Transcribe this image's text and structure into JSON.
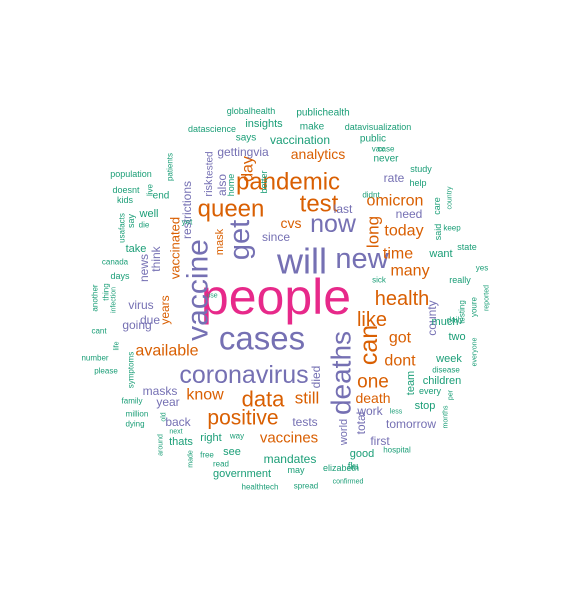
{
  "colors": {
    "teal": "#1b9e77",
    "orange": "#d95f02",
    "purple": "#7570b3",
    "magenta": "#e7298a"
  },
  "words": [
    {
      "text": "people",
      "color": "magenta",
      "weight": 10
    },
    {
      "text": "will",
      "color": "purple",
      "weight": 7
    },
    {
      "text": "cases",
      "color": "purple",
      "weight": 7
    },
    {
      "text": "vaccine",
      "color": "purple",
      "weight": 6
    },
    {
      "text": "coronavirus",
      "color": "purple",
      "weight": 6
    },
    {
      "text": "deaths",
      "color": "purple",
      "weight": 6
    },
    {
      "text": "new",
      "color": "purple",
      "weight": 5
    },
    {
      "text": "now",
      "color": "purple",
      "weight": 5
    },
    {
      "text": "get",
      "color": "purple",
      "weight": 5
    },
    {
      "text": "pandemic",
      "color": "orange",
      "weight": 5
    },
    {
      "text": "queen",
      "color": "orange",
      "weight": 5
    },
    {
      "text": "test",
      "color": "orange",
      "weight": 5
    },
    {
      "text": "data",
      "color": "orange",
      "weight": 5
    },
    {
      "text": "positive",
      "color": "orange",
      "weight": 5
    },
    {
      "text": "can",
      "color": "orange",
      "weight": 5
    },
    {
      "text": "like",
      "color": "orange",
      "weight": 4
    },
    {
      "text": "health",
      "color": "orange",
      "weight": 4
    },
    {
      "text": "one",
      "color": "orange",
      "weight": 4
    },
    {
      "text": "day",
      "color": "orange",
      "weight": 3
    },
    {
      "text": "long",
      "color": "orange",
      "weight": 3
    },
    {
      "text": "omicron",
      "color": "orange",
      "weight": 3
    },
    {
      "text": "time",
      "color": "orange",
      "weight": 3
    },
    {
      "text": "today",
      "color": "orange",
      "weight": 3
    },
    {
      "text": "got",
      "color": "orange",
      "weight": 3
    },
    {
      "text": "dont",
      "color": "orange",
      "weight": 3
    },
    {
      "text": "many",
      "color": "orange",
      "weight": 3
    },
    {
      "text": "still",
      "color": "orange",
      "weight": 3
    },
    {
      "text": "know",
      "color": "orange",
      "weight": 3
    },
    {
      "text": "available",
      "color": "orange",
      "weight": 3
    },
    {
      "text": "vaccines",
      "color": "orange",
      "weight": 3
    },
    {
      "text": "death",
      "color": "orange",
      "weight": 3
    },
    {
      "text": "analytics",
      "color": "orange",
      "weight": 3
    },
    {
      "text": "vaccinated",
      "color": "orange",
      "weight": 3
    },
    {
      "text": "years",
      "color": "orange",
      "weight": 3
    },
    {
      "text": "cvs",
      "color": "orange",
      "weight": 3
    },
    {
      "text": "mask",
      "color": "orange",
      "weight": 2
    },
    {
      "text": "also",
      "color": "purple",
      "weight": 2
    },
    {
      "text": "virus",
      "color": "purple",
      "weight": 2
    },
    {
      "text": "news",
      "color": "purple",
      "weight": 2
    },
    {
      "text": "think",
      "color": "purple",
      "weight": 2
    },
    {
      "text": "restrictions",
      "color": "purple",
      "weight": 2
    },
    {
      "text": "going",
      "color": "purple",
      "weight": 2
    },
    {
      "text": "masks",
      "color": "purple",
      "weight": 2
    },
    {
      "text": "year",
      "color": "purple",
      "weight": 2
    },
    {
      "text": "back",
      "color": "purple",
      "weight": 2
    },
    {
      "text": "tests",
      "color": "purple",
      "weight": 2
    },
    {
      "text": "died",
      "color": "purple",
      "weight": 2
    },
    {
      "text": "last",
      "color": "purple",
      "weight": 2
    },
    {
      "text": "since",
      "color": "purple",
      "weight": 2
    },
    {
      "text": "work",
      "color": "purple",
      "weight": 2
    },
    {
      "text": "total",
      "color": "purple",
      "weight": 2
    },
    {
      "text": "world",
      "color": "purple",
      "weight": 2
    },
    {
      "text": "first",
      "color": "purple",
      "weight": 2
    },
    {
      "text": "tomorrow",
      "color": "purple",
      "weight": 2
    },
    {
      "text": "need",
      "color": "purple",
      "weight": 2
    },
    {
      "text": "rate",
      "color": "purple",
      "weight": 2
    },
    {
      "text": "county",
      "color": "purple",
      "weight": 2
    },
    {
      "text": "due",
      "color": "purple",
      "weight": 2
    },
    {
      "text": "risk",
      "color": "purple",
      "weight": 2
    },
    {
      "text": "tested",
      "color": "purple",
      "weight": 2
    },
    {
      "text": "gettingvia",
      "color": "purple",
      "weight": 2
    },
    {
      "text": "vaccination",
      "color": "teal",
      "weight": 2
    },
    {
      "text": "mandates",
      "color": "teal",
      "weight": 2
    },
    {
      "text": "government",
      "color": "teal",
      "weight": 2
    },
    {
      "text": "see",
      "color": "teal",
      "weight": 2
    },
    {
      "text": "right",
      "color": "teal",
      "weight": 2
    },
    {
      "text": "thats",
      "color": "teal",
      "weight": 2
    },
    {
      "text": "good",
      "color": "teal",
      "weight": 2
    },
    {
      "text": "team",
      "color": "teal",
      "weight": 2
    },
    {
      "text": "stop",
      "color": "teal",
      "weight": 2
    },
    {
      "text": "week",
      "color": "teal",
      "weight": 2
    },
    {
      "text": "children",
      "color": "teal",
      "weight": 2
    },
    {
      "text": "two",
      "color": "teal",
      "weight": 2
    },
    {
      "text": "want",
      "color": "teal",
      "weight": 2
    },
    {
      "text": "much",
      "color": "teal",
      "weight": 2
    },
    {
      "text": "well",
      "color": "teal",
      "weight": 2
    },
    {
      "text": "take",
      "color": "teal",
      "weight": 2
    },
    {
      "text": "insights",
      "color": "teal",
      "weight": 1
    },
    {
      "text": "make",
      "color": "teal",
      "weight": 1
    },
    {
      "text": "says",
      "color": "teal",
      "weight": 1
    },
    {
      "text": "globalhealth",
      "color": "teal",
      "weight": 1
    },
    {
      "text": "publichealth",
      "color": "teal",
      "weight": 1
    },
    {
      "text": "datascience",
      "color": "teal",
      "weight": 1
    },
    {
      "text": "datavisualization",
      "color": "teal",
      "weight": 1
    },
    {
      "text": "public",
      "color": "teal",
      "weight": 1
    },
    {
      "text": "vax",
      "color": "teal",
      "weight": 1
    },
    {
      "text": "case",
      "color": "teal",
      "weight": 1
    },
    {
      "text": "never",
      "color": "teal",
      "weight": 1
    },
    {
      "text": "flu",
      "color": "teal",
      "weight": 1
    },
    {
      "text": "patients",
      "color": "teal",
      "weight": 1
    },
    {
      "text": "population",
      "color": "teal",
      "weight": 1
    },
    {
      "text": "home",
      "color": "teal",
      "weight": 1
    },
    {
      "text": "better",
      "color": "teal",
      "weight": 1
    },
    {
      "text": "didnt",
      "color": "teal",
      "weight": 1
    },
    {
      "text": "study",
      "color": "teal",
      "weight": 1
    },
    {
      "text": "help",
      "color": "teal",
      "weight": 1
    },
    {
      "text": "care",
      "color": "teal",
      "weight": 1
    },
    {
      "text": "country",
      "color": "teal",
      "weight": 1
    },
    {
      "text": "said",
      "color": "teal",
      "weight": 1
    },
    {
      "text": "keep",
      "color": "teal",
      "weight": 1
    },
    {
      "text": "doesnt",
      "color": "teal",
      "weight": 1
    },
    {
      "text": "kids",
      "color": "teal",
      "weight": 1
    },
    {
      "text": "end",
      "color": "teal",
      "weight": 1
    },
    {
      "text": "live",
      "color": "teal",
      "weight": 1
    },
    {
      "text": "say",
      "color": "teal",
      "weight": 1
    },
    {
      "text": "usafacts",
      "color": "teal",
      "weight": 1
    },
    {
      "text": "die",
      "color": "teal",
      "weight": 1
    },
    {
      "text": "yet",
      "color": "teal",
      "weight": 1
    },
    {
      "text": "state",
      "color": "teal",
      "weight": 1
    },
    {
      "text": "canada",
      "color": "teal",
      "weight": 1
    },
    {
      "text": "days",
      "color": "teal",
      "weight": 1
    },
    {
      "text": "yes",
      "color": "teal",
      "weight": 1
    },
    {
      "text": "really",
      "color": "teal",
      "weight": 1
    },
    {
      "text": "sick",
      "color": "teal",
      "weight": 1
    },
    {
      "text": "another",
      "color": "teal",
      "weight": 1
    },
    {
      "text": "thing",
      "color": "teal",
      "weight": 1
    },
    {
      "text": "infection",
      "color": "teal",
      "weight": 1
    },
    {
      "text": "testing",
      "color": "teal",
      "weight": 1
    },
    {
      "text": "youre",
      "color": "teal",
      "weight": 1
    },
    {
      "text": "reported",
      "color": "teal",
      "weight": 1
    },
    {
      "text": "use",
      "color": "teal",
      "weight": 1
    },
    {
      "text": "cant",
      "color": "teal",
      "weight": 1
    },
    {
      "text": "life",
      "color": "teal",
      "weight": 1
    },
    {
      "text": "number",
      "color": "teal",
      "weight": 1
    },
    {
      "text": "please",
      "color": "teal",
      "weight": 1
    },
    {
      "text": "symptoms",
      "color": "teal",
      "weight": 1
    },
    {
      "text": "everyone",
      "color": "teal",
      "weight": 1
    },
    {
      "text": "disease",
      "color": "teal",
      "weight": 1
    },
    {
      "text": "daily",
      "color": "teal",
      "weight": 1
    },
    {
      "text": "family",
      "color": "teal",
      "weight": 1
    },
    {
      "text": "million",
      "color": "teal",
      "weight": 1
    },
    {
      "text": "dying",
      "color": "teal",
      "weight": 1
    },
    {
      "text": "next",
      "color": "teal",
      "weight": 1
    },
    {
      "text": "around",
      "color": "teal",
      "weight": 1
    },
    {
      "text": "old",
      "color": "teal",
      "weight": 1
    },
    {
      "text": "made",
      "color": "teal",
      "weight": 1
    },
    {
      "text": "free",
      "color": "teal",
      "weight": 1
    },
    {
      "text": "read",
      "color": "teal",
      "weight": 1
    },
    {
      "text": "way",
      "color": "teal",
      "weight": 1
    },
    {
      "text": "may",
      "color": "teal",
      "weight": 1
    },
    {
      "text": "elizabeth",
      "color": "teal",
      "weight": 1
    },
    {
      "text": "hospital",
      "color": "teal",
      "weight": 1
    },
    {
      "text": "less",
      "color": "teal",
      "weight": 1
    },
    {
      "text": "every",
      "color": "teal",
      "weight": 1
    },
    {
      "text": "months",
      "color": "teal",
      "weight": 1
    },
    {
      "text": "per",
      "color": "teal",
      "weight": 1
    },
    {
      "text": "healthtech",
      "color": "teal",
      "weight": 1
    },
    {
      "text": "spread",
      "color": "teal",
      "weight": 1
    },
    {
      "text": "confirmed",
      "color": "teal",
      "weight": 1
    }
  ]
}
